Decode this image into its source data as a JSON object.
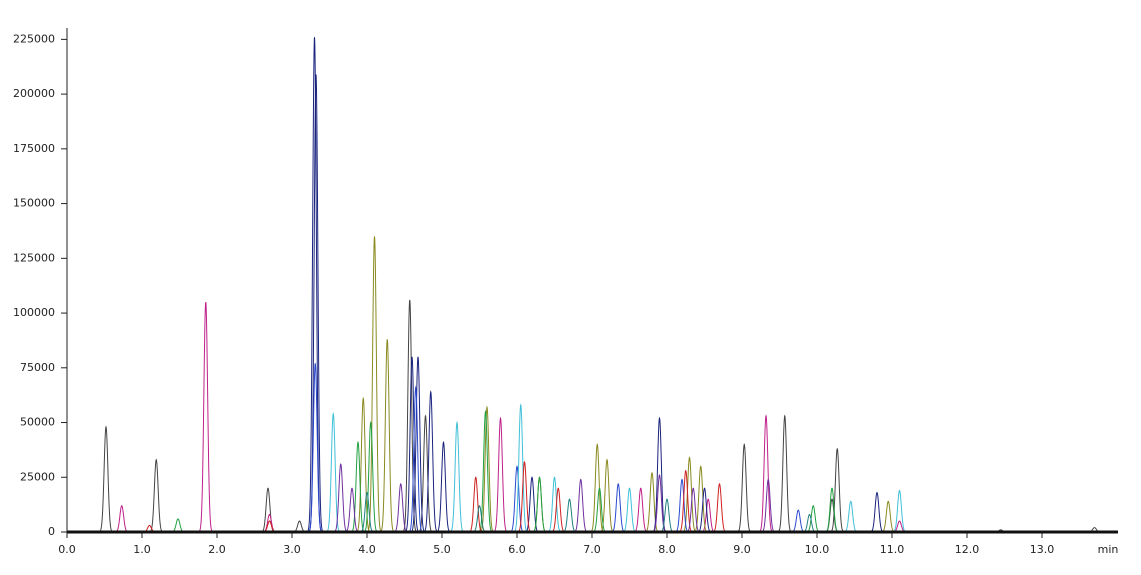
{
  "chart_data": {
    "type": "chromatogram",
    "x_label": "min",
    "xlim": [
      0,
      14
    ],
    "ylim": [
      0,
      227000
    ],
    "xticks": [
      {
        "value": 0,
        "label": "0.0"
      },
      {
        "value": 1,
        "label": "1.0"
      },
      {
        "value": 2,
        "label": "2.0"
      },
      {
        "value": 3,
        "label": "3.0"
      },
      {
        "value": 4,
        "label": "4.0"
      },
      {
        "value": 5,
        "label": "5.0"
      },
      {
        "value": 6,
        "label": "6.0"
      },
      {
        "value": 7,
        "label": "7.0"
      },
      {
        "value": 8,
        "label": "8.0"
      },
      {
        "value": 9,
        "label": "9.0"
      },
      {
        "value": 10,
        "label": "10.0"
      },
      {
        "value": 11,
        "label": "11.0"
      },
      {
        "value": 12,
        "label": "12.0"
      },
      {
        "value": 13,
        "label": "13.0"
      }
    ],
    "yticks": [
      0,
      25000,
      50000,
      75000,
      100000,
      125000,
      150000,
      175000,
      200000,
      225000
    ],
    "series": [
      {
        "color": "#444444",
        "x": [
          0.52,
          1.19,
          2.68,
          3.1,
          4.57,
          4.78,
          9.03,
          9.57,
          10.2,
          10.27,
          12.45,
          13.7
        ],
        "values": [
          48000,
          33000,
          20000,
          5000,
          106000,
          53000,
          40000,
          53000,
          15000,
          38000,
          1000,
          2000
        ]
      },
      {
        "color": "#c0208a",
        "x": [
          0.73,
          1.85,
          2.7,
          5.78,
          7.65,
          8.55,
          9.32,
          11.1
        ],
        "values": [
          12000,
          105000,
          8000,
          52000,
          20000,
          15000,
          53000,
          5000
        ]
      },
      {
        "color": "#8a8a20",
        "x": [
          3.95,
          4.1,
          4.27,
          5.6,
          6.3,
          7.07,
          7.2,
          7.8,
          8.3,
          8.45,
          10.95
        ],
        "values": [
          61000,
          135000,
          88000,
          57000,
          25000,
          40000,
          33000,
          27000,
          34000,
          30000,
          14000
        ]
      },
      {
        "color": "#1a237e",
        "x": [
          3.3,
          3.32,
          4.6,
          4.68,
          4.85,
          5.02,
          6.2,
          7.9,
          8.5,
          10.8
        ],
        "values": [
          226000,
          209000,
          80000,
          80000,
          64000,
          41000,
          25000,
          52000,
          20000,
          18000
        ]
      },
      {
        "color": "#2a4ad0",
        "x": [
          3.31,
          4.65,
          6.0,
          7.35,
          8.2,
          9.75
        ],
        "values": [
          77000,
          66000,
          30000,
          22000,
          24000,
          10000
        ]
      },
      {
        "color": "#40c0d8",
        "x": [
          3.55,
          5.2,
          6.05,
          6.5,
          7.5,
          10.45,
          11.1
        ],
        "values": [
          54000,
          50000,
          58000,
          25000,
          20000,
          14000,
          19000
        ]
      },
      {
        "color": "#20a040",
        "x": [
          1.48,
          3.88,
          4.05,
          5.58,
          6.3,
          7.1,
          9.95,
          10.2
        ],
        "values": [
          6000,
          41000,
          50000,
          55000,
          25000,
          20000,
          12000,
          20000
        ]
      },
      {
        "color": "#d02020",
        "x": [
          1.1,
          2.7,
          5.45,
          6.1,
          6.55,
          8.25,
          8.7
        ],
        "values": [
          3000,
          5000,
          25000,
          32000,
          20000,
          28000,
          22000
        ]
      },
      {
        "color": "#7030a0",
        "x": [
          3.65,
          3.8,
          4.45,
          6.85,
          7.9,
          8.35,
          9.35
        ],
        "values": [
          31000,
          20000,
          22000,
          24000,
          26000,
          20000,
          24000
        ]
      },
      {
        "color": "#208080",
        "x": [
          4.0,
          5.5,
          6.7,
          8.0,
          9.9
        ],
        "values": [
          18000,
          12000,
          15000,
          15000,
          8000
        ]
      }
    ]
  }
}
